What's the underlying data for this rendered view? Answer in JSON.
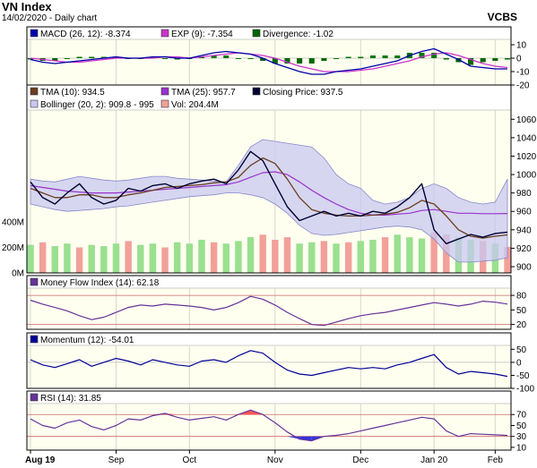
{
  "header": {
    "title": "VN Index",
    "subtitle": "14/02/2020 - Daily chart",
    "source": "VCBS"
  },
  "colors": {
    "panel_bg": "#fffff0",
    "band_fill": "#c8c8f0",
    "band_line": "#8888cc",
    "closing": "#000033",
    "tma10": "#6b3d1f",
    "tma25": "#9933cc",
    "macd": "#0000aa",
    "exp": "#cc33cc",
    "div_pos": "#007700",
    "div_neg": "#006600",
    "vol_up": "#99e08f",
    "vol_down": "#f2a09a",
    "mfi": "#663399",
    "momentum": "#000099",
    "rsi": "#663399",
    "ref_line": "#cc6666",
    "rsi_over": "#ff5555",
    "rsi_under": "#3333dd"
  },
  "chart_data": [
    {
      "type": "line",
      "panel": "macd",
      "legend": [
        {
          "swatch": "#0000aa",
          "label": "MACD (26, 12): -8.374"
        },
        {
          "swatch": "#cc33cc",
          "label": "EXP (9): -7.354"
        },
        {
          "swatch": "#006600",
          "label": "Divergence: -1.02"
        }
      ],
      "y_ticks": [
        {
          "v": 10,
          "label": "10"
        },
        {
          "v": 0,
          "label": "0"
        },
        {
          "v": -10,
          "label": "-10"
        },
        {
          "v": -20,
          "label": "-20"
        }
      ],
      "ylim": [
        -20,
        14
      ],
      "series": [
        {
          "name": "MACD (26, 12)",
          "values": [
            -1,
            -3,
            -4,
            -3,
            -2,
            -1,
            0,
            1,
            0,
            0,
            1,
            1,
            0,
            0,
            2,
            4,
            5,
            4,
            3,
            0,
            -4,
            -7,
            -10,
            -12,
            -12,
            -10,
            -9,
            -8,
            -6,
            -4,
            -2,
            2,
            5,
            7,
            3,
            -1,
            -6,
            -7,
            -8,
            -8
          ]
        },
        {
          "name": "EXP (9)",
          "values": [
            0,
            -1,
            -2,
            -3,
            -3,
            -2,
            -1,
            0,
            0,
            0,
            0,
            1,
            1,
            0,
            1,
            2,
            3,
            4,
            3,
            2,
            0,
            -3,
            -6,
            -8,
            -10,
            -10,
            -10,
            -9,
            -8,
            -6,
            -4,
            -2,
            1,
            3,
            4,
            2,
            -1,
            -4,
            -6,
            -7
          ]
        }
      ],
      "divergence": [
        -1,
        -2,
        -2,
        0,
        1,
        1,
        1,
        1,
        0,
        0,
        1,
        0,
        -1,
        0,
        1,
        2,
        2,
        0,
        0,
        -2,
        -4,
        -4,
        -4,
        -4,
        -2,
        0,
        1,
        1,
        2,
        2,
        2,
        4,
        4,
        4,
        -1,
        -3,
        -5,
        -3,
        -2,
        -1
      ]
    },
    {
      "type": "line",
      "panel": "price",
      "legend": [
        {
          "swatch": "#6b3d1f",
          "label": "TMA (10): 934.5"
        },
        {
          "swatch": "#9933cc",
          "label": "TMA (25): 957.7"
        },
        {
          "swatch": "#000033",
          "label": "Closing Price: 937.5"
        },
        {
          "swatch": "#c8c8f0",
          "label": "Bollinger (20, 2): 909.8 - 995"
        },
        {
          "swatch": "#f2a09a",
          "label": "Vol: 204.4M"
        }
      ],
      "y_ticks": [
        {
          "v": 1060,
          "label": "1060"
        },
        {
          "v": 1040,
          "label": "1040"
        },
        {
          "v": 1020,
          "label": "1020"
        },
        {
          "v": 1000,
          "label": "1000"
        },
        {
          "v": 980,
          "label": "980"
        },
        {
          "v": 960,
          "label": "960"
        },
        {
          "v": 940,
          "label": "940"
        },
        {
          "v": 920,
          "label": "920"
        },
        {
          "v": 900,
          "label": "900"
        }
      ],
      "vol_ticks": [
        {
          "v": 400,
          "label": "400M"
        },
        {
          "v": 200,
          "label": "200M"
        },
        {
          "v": 0,
          "label": "0M"
        }
      ],
      "ylim": [
        900,
        1070
      ],
      "vol_max": 400,
      "closing": [
        992,
        975,
        968,
        980,
        990,
        975,
        968,
        972,
        985,
        982,
        988,
        990,
        985,
        990,
        993,
        995,
        990,
        1005,
        1025,
        1015,
        990,
        965,
        950,
        955,
        960,
        955,
        958,
        955,
        960,
        958,
        965,
        975,
        990,
        940,
        925,
        930,
        935,
        932,
        936,
        937.5
      ],
      "tma10": [
        985,
        980,
        975,
        975,
        978,
        978,
        975,
        975,
        978,
        980,
        983,
        986,
        987,
        988,
        989,
        991,
        992,
        997,
        1010,
        1018,
        1012,
        995,
        975,
        962,
        958,
        956,
        955,
        955,
        956,
        957,
        959,
        964,
        972,
        968,
        955,
        940,
        933,
        931,
        933,
        934.5
      ],
      "tma25": [
        988,
        986,
        984,
        982,
        981,
        980,
        980,
        980,
        981,
        982,
        983,
        984,
        985,
        986,
        987,
        988,
        989,
        992,
        997,
        1002,
        1003,
        1000,
        992,
        983,
        975,
        968,
        962,
        958,
        956,
        956,
        957,
        958,
        961,
        962,
        960,
        958,
        958,
        957.5,
        957.5,
        957.7
      ],
      "boll_upper": [
        995,
        993,
        992,
        995,
        998,
        996,
        994,
        993,
        994,
        996,
        998,
        998,
        996,
        995,
        994,
        993,
        992,
        1010,
        1030,
        1038,
        1036,
        1034,
        1032,
        1030,
        1018,
        1000,
        990,
        985,
        972,
        968,
        970,
        975,
        985,
        990,
        985,
        975,
        970,
        968,
        970,
        995
      ],
      "boll_lower": [
        968,
        965,
        962,
        960,
        961,
        962,
        963,
        965,
        966,
        968,
        970,
        972,
        974,
        976,
        977,
        978,
        980,
        980,
        978,
        975,
        968,
        958,
        945,
        936,
        934,
        935,
        937,
        939,
        941,
        943,
        944,
        943,
        940,
        930,
        915,
        905,
        905,
        906,
        907,
        909.8
      ],
      "volume": [
        220,
        240,
        210,
        230,
        200,
        220,
        210,
        230,
        250,
        220,
        230,
        200,
        240,
        230,
        260,
        240,
        230,
        250,
        280,
        300,
        260,
        280,
        230,
        240,
        250,
        230,
        240,
        250,
        260,
        280,
        300,
        280,
        270,
        320,
        300,
        280,
        260,
        250,
        230,
        204
      ],
      "volume_up": [
        1,
        0,
        1,
        1,
        0,
        1,
        1,
        1,
        0,
        1,
        1,
        0,
        1,
        1,
        1,
        0,
        1,
        1,
        1,
        0,
        0,
        0,
        1,
        1,
        0,
        1,
        0,
        1,
        1,
        0,
        1,
        1,
        1,
        0,
        0,
        1,
        1,
        0,
        1,
        0
      ]
    },
    {
      "type": "line",
      "panel": "mfi",
      "legend": [
        {
          "swatch": "#663399",
          "label": "Money Flow Index (14): 62.18"
        }
      ],
      "y_ticks": [
        {
          "v": 80,
          "label": "80"
        },
        {
          "v": 50,
          "label": "50"
        },
        {
          "v": 20,
          "label": "20"
        }
      ],
      "ref_lines": [
        80,
        20
      ],
      "ylim": [
        10,
        95
      ],
      "values": [
        70,
        62,
        55,
        48,
        38,
        30,
        35,
        45,
        55,
        60,
        58,
        62,
        60,
        58,
        55,
        50,
        55,
        65,
        78,
        72,
        60,
        45,
        32,
        20,
        18,
        25,
        32,
        38,
        42,
        45,
        50,
        55,
        60,
        65,
        62,
        58,
        62,
        68,
        66,
        62.18
      ]
    },
    {
      "type": "line",
      "panel": "momentum",
      "legend": [
        {
          "swatch": "#000099",
          "label": "Momentum (12): -54.01"
        }
      ],
      "y_ticks": [
        {
          "v": 50,
          "label": "50"
        },
        {
          "v": 0,
          "label": "0"
        },
        {
          "v": -50,
          "label": "-50"
        },
        {
          "v": -100,
          "label": "-100"
        }
      ],
      "ylim": [
        -100,
        65
      ],
      "values": [
        10,
        -10,
        -20,
        -5,
        10,
        -15,
        0,
        15,
        5,
        -10,
        10,
        0,
        -10,
        -15,
        5,
        10,
        0,
        25,
        45,
        35,
        0,
        -30,
        -45,
        -50,
        -40,
        -30,
        -20,
        -25,
        -20,
        -25,
        -10,
        0,
        15,
        30,
        -20,
        -45,
        -35,
        -40,
        -45,
        -54.01
      ]
    },
    {
      "type": "line",
      "panel": "rsi",
      "legend": [
        {
          "swatch": "#663399",
          "label": "RSI (14): 31.85"
        }
      ],
      "y_ticks": [
        {
          "v": 70,
          "label": "70"
        },
        {
          "v": 50,
          "label": "50"
        },
        {
          "v": 30,
          "label": "30"
        },
        {
          "v": 10,
          "label": "10"
        }
      ],
      "ref_lines": [
        70,
        30
      ],
      "ylim": [
        5,
        90
      ],
      "values": [
        62,
        50,
        45,
        55,
        60,
        48,
        42,
        50,
        62,
        60,
        68,
        72,
        65,
        60,
        63,
        66,
        60,
        70,
        78,
        70,
        55,
        38,
        25,
        22,
        30,
        32,
        35,
        40,
        45,
        50,
        55,
        60,
        65,
        62,
        40,
        30,
        35,
        34,
        33,
        31.85
      ]
    }
  ],
  "x_axis": {
    "labels": [
      {
        "i": 0,
        "label": "Aug 19"
      },
      {
        "i": 7,
        "label": "Sep"
      },
      {
        "i": 13,
        "label": "Oct"
      },
      {
        "i": 20,
        "label": "Nov"
      },
      {
        "i": 27,
        "label": "Dec"
      },
      {
        "i": 33,
        "label": "Jan 20"
      },
      {
        "i": 38,
        "label": "Feb"
      }
    ]
  }
}
